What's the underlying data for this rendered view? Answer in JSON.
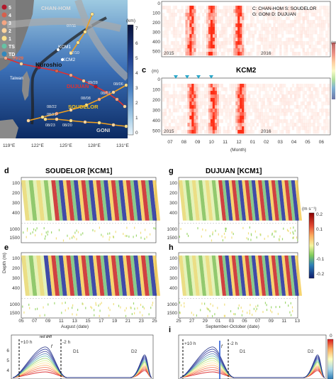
{
  "figure": {
    "map": {
      "legend": [
        "5",
        "4",
        "3",
        "2",
        "1",
        "TS",
        "TD"
      ],
      "legend_colors": [
        "#b2182b",
        "#d6604d",
        "#f4a582",
        "#fdd49e",
        "#fee08b",
        "#66c2a5",
        "#3288bd"
      ],
      "typhoons": [
        "CHAN-HOM",
        "DUJUAN",
        "SOUDELOR",
        "GONI"
      ],
      "current": "Kuroshio",
      "land": "Taiwan",
      "moorings": [
        "KCM1",
        "KCM2"
      ],
      "dates": [
        "07/11",
        "07/10",
        "09/29",
        "09/28",
        "08/08",
        "08/07",
        "08/06",
        "08/21",
        "08/22",
        "08/20",
        "08/23"
      ],
      "lon_ticks": [
        "119°E",
        "122°E",
        "125°E",
        "128°E",
        "131°E"
      ],
      "depth_bar_label": "(km)",
      "depth_bar_ticks": [
        "7",
        "6",
        "5",
        "4",
        "3",
        "2",
        "1",
        "0"
      ]
    },
    "panel_b": {
      "legend_lines": [
        "C: CHAN-HOM   S: SOUDELOR",
        "G: GONI        D: DUJUAN"
      ],
      "y_ticks": [
        "0",
        "100",
        "200",
        "300",
        "400",
        "500"
      ],
      "year_left": "2015",
      "year_right": "2016",
      "unit": "(m"
    },
    "panel_c": {
      "letter": "c",
      "title": "KCM2",
      "unit": "(m)",
      "y_ticks": [
        "0",
        "100",
        "200",
        "300",
        "400",
        "500"
      ],
      "x_ticks": [
        "07",
        "08",
        "09",
        "10",
        "11",
        "12",
        "01",
        "02",
        "03",
        "04",
        "05",
        "06"
      ],
      "xlabel": "(Month)",
      "year_left": "2015",
      "year_right": "2016"
    },
    "panel_d": {
      "letter": "d",
      "title": "SOUDELOR [KCM1]"
    },
    "panel_e": {
      "letter": "e"
    },
    "panel_g": {
      "letter": "g",
      "title": "DUJUAN [KCM1]"
    },
    "panel_h": {
      "letter": "h"
    },
    "panel_i": {
      "letter": "i"
    },
    "depth_ylabel": "Depth (m)",
    "y_ticks_upper": [
      "100",
      "200",
      "300",
      "400"
    ],
    "y_ticks_lower": [
      "1000",
      "1500"
    ],
    "august_ticks": [
      "05",
      "07",
      "09",
      "11",
      "13",
      "15",
      "17",
      "19",
      "21",
      "23",
      "25"
    ],
    "august_label": "August (date)",
    "sepoct_ticks": [
      "25",
      "27",
      "29",
      "01",
      "03",
      "05",
      "07",
      "09",
      "11",
      "13"
    ],
    "sepoct_label": "September-October (date)",
    "colorbar": {
      "unit": "(m s⁻¹)",
      "ticks": [
        "0.2",
        "0.1",
        "0",
        "-0.1",
        "-0.2"
      ]
    },
    "bottom_left": {
      "labels": [
        "+10 h",
        "-2 h",
        "D1",
        "D2",
        "red drift",
        "f"
      ],
      "y_ticks": [
        "6",
        "5",
        "4"
      ]
    },
    "bottom_right": {
      "labels": [
        "+10 h",
        "-2 h",
        "D1",
        "D2",
        "f"
      ],
      "cbar_top": "0"
    }
  }
}
